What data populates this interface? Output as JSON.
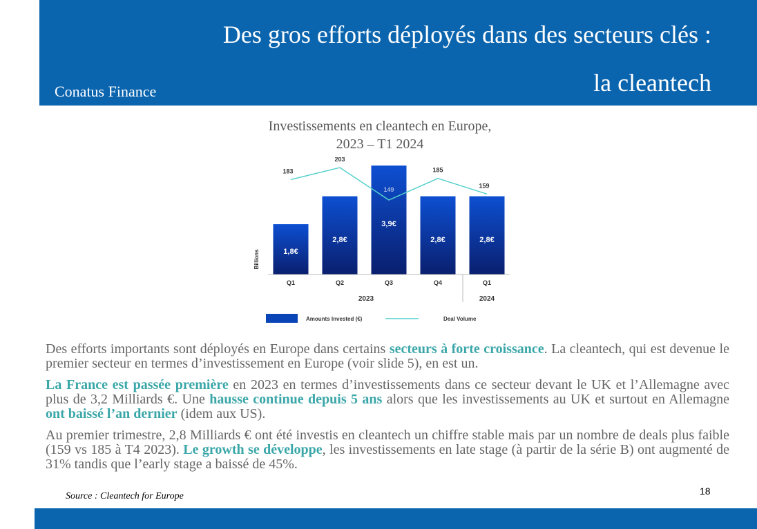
{
  "header": {
    "title_line1": "Des gros efforts déployés dans des secteurs clés :",
    "title_line2": "la cleantech",
    "brand": "Conatus Finance"
  },
  "chart_data": {
    "type": "bar",
    "title": "Investissements en cleantech en Europe,",
    "subtitle": "2023 – T1 2024",
    "categories": [
      "Q1",
      "Q2",
      "Q3",
      "Q4",
      "Q1"
    ],
    "groups": [
      {
        "label": "2023",
        "categories": [
          "Q1",
          "Q2",
          "Q3",
          "Q4"
        ]
      },
      {
        "label": "2024",
        "categories": [
          "Q1"
        ]
      }
    ],
    "ylabel": "Billions",
    "ylim": [
      0,
      3.9
    ],
    "series": [
      {
        "name": "Amounts Invested (€)",
        "type": "bar",
        "values": [
          1.8,
          2.8,
          3.9,
          2.8,
          2.8
        ],
        "labels": [
          "1,8€",
          "2,8€",
          "3,9€",
          "2,8€",
          "2,8€"
        ],
        "color": "#0a3a9c"
      },
      {
        "name": "Deal Volume",
        "type": "line",
        "values": [
          183,
          203,
          149,
          185,
          159
        ],
        "labels": [
          "183",
          "203",
          "149",
          "185",
          "159"
        ],
        "color": "#55d0cc"
      }
    ],
    "line_ylim": [
      0,
      220
    ],
    "legend": "bottom"
  },
  "body": {
    "p1": {
      "a": "Des efforts importants sont déployés en Europe dans certains ",
      "b": "secteurs à forte croissance",
      "c": ". La cleantech, qui est devenue le premier secteur en termes d’investissement en Europe (voir slide 5), en est un."
    },
    "p2": {
      "a": "La France est passée première",
      "b": " en 2023 en termes d’investissements dans ce secteur devant le UK et l’Allemagne avec plus de 3,2 Milliards €. Une ",
      "c": "hausse continue depuis 5 ans",
      "d": " alors que les investissements au UK et surtout en Allemagne ",
      "e": "ont baissé l’an dernier",
      "f": " (idem aux US)."
    },
    "p3": {
      "a": "Au premier trimestre, 2,8 Milliards € ont été investis en cleantech un chiffre stable mais par un nombre de deals plus faible (159 vs 185 à T4 2023). ",
      "b": "Le growth se développe",
      "c": ", les investissements en late stage (à partir de la série B) ont augmenté de 31% tandis que l’early stage a baissé de 45%."
    }
  },
  "footer": {
    "source": "Source : Cleantech for Europe",
    "page_number": "18"
  }
}
